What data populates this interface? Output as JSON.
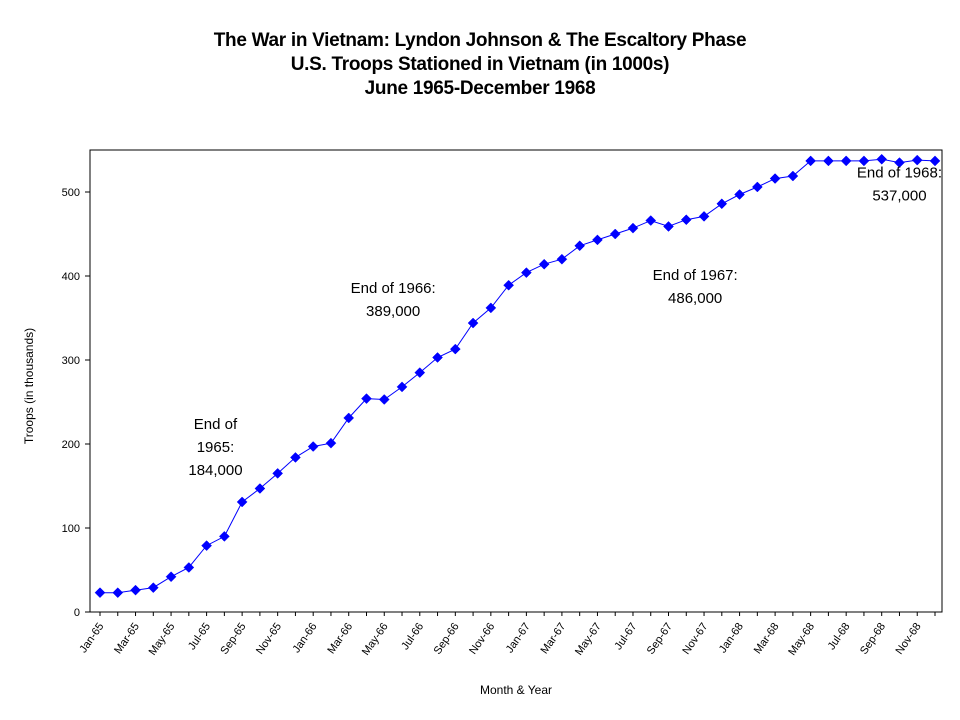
{
  "chart_data": {
    "type": "line",
    "title_lines": [
      "The War in Vietnam: Lyndon Johnson & The Escaltory Phase",
      "U.S. Troops Stationed in Vietnam (in 1000s)",
      "June 1965-December 1968"
    ],
    "xlabel": "Month & Year",
    "ylabel": "Troops (in thousands)",
    "ylim": [
      0,
      550
    ],
    "yticks": [
      0,
      100,
      200,
      300,
      400,
      500
    ],
    "grid": false,
    "series_color": "#0000ff",
    "x_tick_labels": [
      "Jan-65",
      "Mar-65",
      "May-65",
      "Jul-65",
      "Sep-65",
      "Nov-65",
      "Jan-66",
      "Mar-66",
      "May-66",
      "Jul-66",
      "Sep-66",
      "Nov-66",
      "Jan-67",
      "Mar-67",
      "May-67",
      "Jul-67",
      "Sep-67",
      "Nov-67",
      "Jan-68",
      "Mar-68",
      "May-68",
      "Jul-68",
      "Sep-68",
      "Nov-68"
    ],
    "series": [
      {
        "values": [
          23,
          23,
          26,
          29,
          42,
          53,
          79,
          90,
          131,
          147,
          165,
          184,
          197,
          201,
          231,
          254,
          253,
          268,
          285,
          303,
          313,
          344,
          362,
          389,
          404,
          414,
          420,
          436,
          443,
          450,
          457,
          466,
          459,
          467,
          471,
          486,
          497,
          506,
          516,
          519,
          537,
          537,
          537,
          537,
          539,
          535,
          538,
          537
        ]
      }
    ],
    "annotations": [
      {
        "lines": [
          "End of",
          "1965:",
          "184,000"
        ],
        "at_month": 6.5,
        "at_value": 218
      },
      {
        "lines": [
          "End of 1966:",
          "389,000"
        ],
        "at_month": 16.5,
        "at_value": 380
      },
      {
        "lines": [
          "End of 1967:",
          "486,000"
        ],
        "at_month": 33.5,
        "at_value": 395
      },
      {
        "lines": [
          "End of 1968:",
          "537,000"
        ],
        "at_month": 45,
        "at_value": 517
      }
    ]
  }
}
